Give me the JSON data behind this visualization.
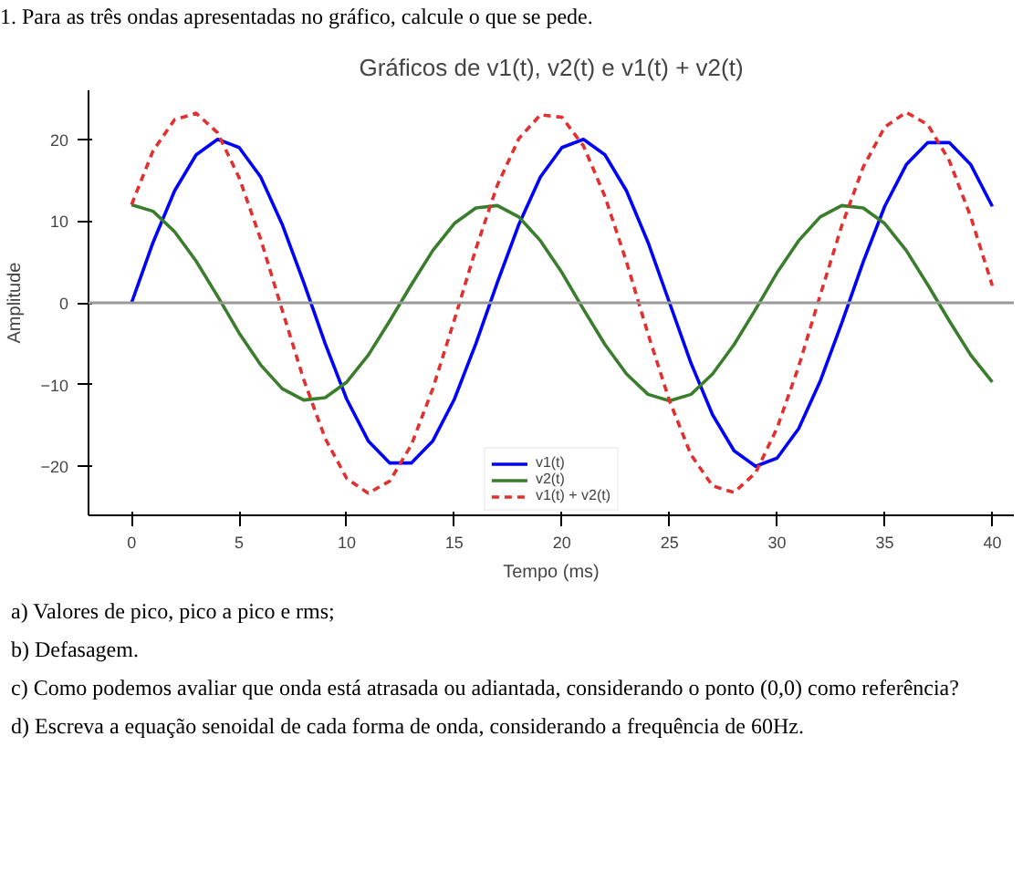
{
  "chart_data": {
    "type": "line",
    "title": "Gráficos de v1(t), v2(t) e v1(t) + v2(t)",
    "xlabel": "Tempo (ms)",
    "ylabel": "Amplitude",
    "x": [
      0,
      1,
      2,
      3,
      4,
      5,
      6,
      7,
      8,
      9,
      10,
      11,
      12,
      13,
      14,
      15,
      16,
      17,
      18,
      19,
      20,
      21,
      22,
      23,
      24,
      25,
      26,
      27,
      28,
      29,
      30,
      31,
      32,
      33,
      34,
      35,
      36,
      37,
      38,
      39,
      40
    ],
    "series": [
      {
        "name": "v1(t)",
        "color": "#0000ff",
        "line_style": "solid",
        "values": [
          0,
          7.4,
          13.7,
          18.1,
          20.0,
          19.0,
          15.4,
          9.6,
          2.5,
          -5.0,
          -11.8,
          -16.9,
          -19.6,
          -19.6,
          -16.9,
          -11.8,
          -5.0,
          2.5,
          9.6,
          15.4,
          19.0,
          20.0,
          18.1,
          13.7,
          7.4,
          0,
          -7.4,
          -13.7,
          -18.1,
          -20.0,
          -19.0,
          -15.4,
          -9.6,
          -2.5,
          5.0,
          11.8,
          16.9,
          19.6,
          19.6,
          16.9,
          11.8
        ]
      },
      {
        "name": "v2(t)",
        "color": "#3a7d2c",
        "line_style": "solid",
        "values": [
          12,
          11.2,
          8.7,
          5.1,
          0.8,
          -3.7,
          -7.6,
          -10.5,
          -11.9,
          -11.6,
          -9.7,
          -6.4,
          -2.2,
          2.2,
          6.4,
          9.7,
          11.6,
          11.9,
          10.5,
          7.6,
          3.7,
          -0.8,
          -5.1,
          -8.7,
          -11.2,
          -12,
          -11.2,
          -8.7,
          -5.1,
          -0.8,
          3.7,
          7.6,
          10.5,
          11.9,
          11.6,
          9.7,
          6.4,
          2.2,
          -2.2,
          -6.4,
          -9.7
        ]
      },
      {
        "name": "v1(t) + v2(t)",
        "color": "#e03030",
        "line_style": "dashed",
        "values": [
          12,
          18.6,
          22.4,
          23.2,
          20.8,
          15.3,
          7.8,
          -0.9,
          -9.4,
          -16.6,
          -21.5,
          -23.3,
          -21.8,
          -17.4,
          -10.5,
          -2.1,
          6.6,
          14.4,
          20.1,
          23.0,
          22.7,
          19.2,
          13.0,
          5.0,
          -3.8,
          -12,
          -18.6,
          -22.4,
          -23.2,
          -20.8,
          -15.3,
          -7.8,
          0.9,
          9.4,
          16.6,
          21.5,
          23.3,
          21.8,
          17.4,
          10.5,
          2.1
        ]
      }
    ],
    "xlim": [
      -2,
      41
    ],
    "ylim": [
      -26,
      26
    ],
    "xticks": [
      0,
      5,
      10,
      15,
      20,
      25,
      30,
      35,
      40
    ],
    "yticks": [
      -20,
      -10,
      0,
      10,
      20
    ],
    "ref_lines": [
      {
        "axis": "y",
        "value": 0,
        "color": "#999999"
      }
    ],
    "grid": false,
    "legend": "bottom",
    "marker": "none",
    "annotations": [
      "1. Para as três ondas apresentadas no gráfico, calcule o que se pede.",
      "a) Valores de pico, pico a pico e rms;",
      "b) Defasagem.",
      "c) Como podemos avaliar que onda está atrasada ou adiantada, considerando o ponto (0,0) como referência?",
      "d) Escreva a equação senoidal de cada forma de onda, considerando a frequência de 60Hz."
    ]
  }
}
